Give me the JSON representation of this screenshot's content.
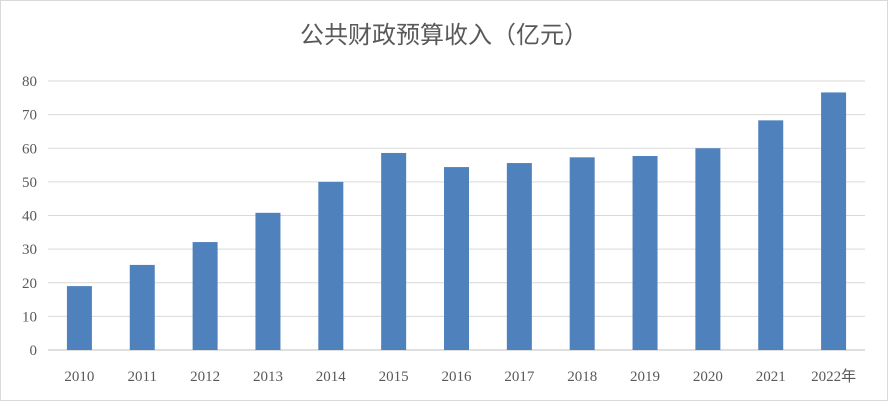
{
  "chart_data": {
    "type": "bar",
    "title": "公共财政预算收入（亿元）",
    "categories": [
      "2010",
      "2011",
      "2012",
      "2013",
      "2014",
      "2015",
      "2016",
      "2017",
      "2018",
      "2019",
      "2020",
      "2021",
      "2022年"
    ],
    "series": [
      {
        "values": [
          19,
          25.3,
          32.1,
          40.8,
          50,
          58.6,
          54.4,
          55.6,
          57.3,
          57.7,
          60,
          68.3,
          76.6
        ]
      }
    ],
    "xlabel": "",
    "ylabel": "",
    "ylim": [
      0,
      80
    ],
    "yticks": [
      0,
      10,
      20,
      30,
      40,
      50,
      60,
      70,
      80
    ],
    "grid": true,
    "legend": "none",
    "bar_color": "#4f81bd"
  }
}
